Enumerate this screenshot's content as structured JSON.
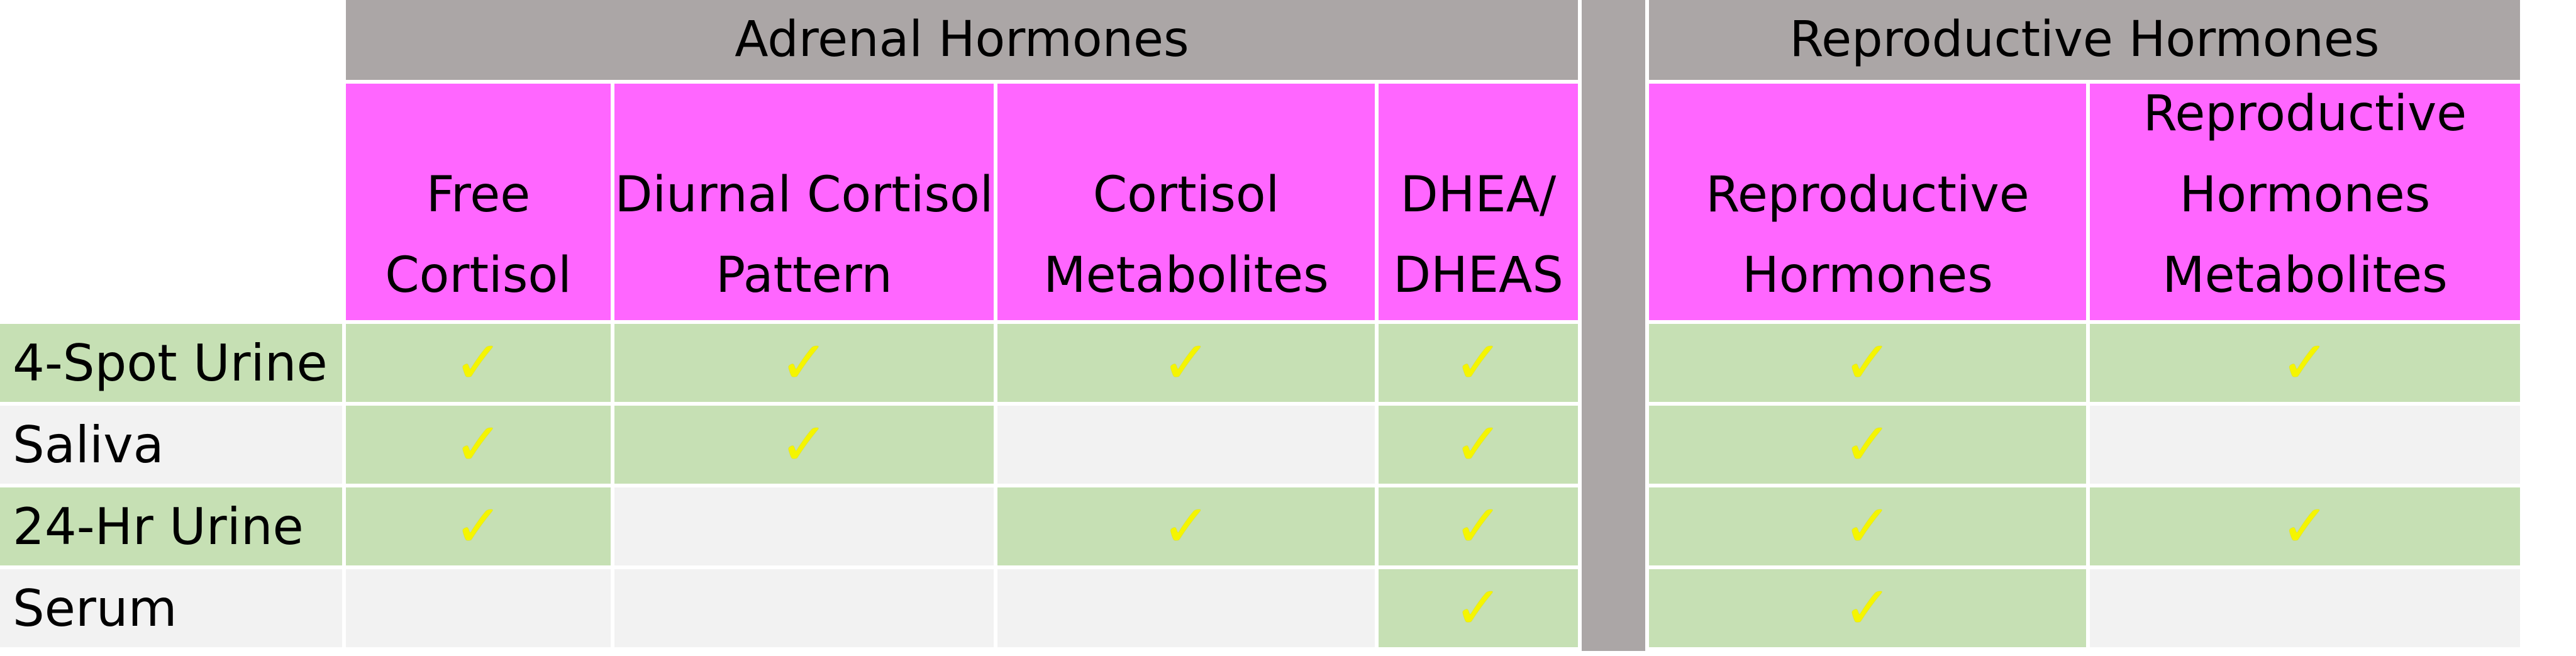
{
  "table": {
    "groups": {
      "adrenal": "Adrenal Hormones",
      "reproductive": "Reproductive Hormones"
    },
    "columns": [
      "Free\nCortisol",
      "Diurnal Cortisol\nPattern",
      "Cortisol\nMetabolites",
      "DHEA/\nDHEAS",
      "Reproductive\nHormones",
      "Reproductive\nHormones\nMetabolites"
    ],
    "check_symbol": "✓",
    "rows": [
      {
        "label": "4-Spot Urine",
        "checks": [
          true,
          true,
          true,
          true,
          true,
          true
        ],
        "fill": "green"
      },
      {
        "label": "Saliva",
        "checks": [
          true,
          true,
          false,
          true,
          true,
          false
        ],
        "fill": "gray"
      },
      {
        "label": "24-Hr Urine",
        "checks": [
          true,
          false,
          true,
          true,
          true,
          true
        ],
        "fill": "green"
      },
      {
        "label": "Serum",
        "checks": [
          false,
          false,
          false,
          true,
          true,
          false
        ],
        "fill": "gray"
      }
    ],
    "colors": {
      "group_header": "#aba6a6",
      "column_header": "#ff66ff",
      "available": "#c6e0b4",
      "unavailable": "#f2f2f2",
      "check": "#f5f500"
    }
  }
}
